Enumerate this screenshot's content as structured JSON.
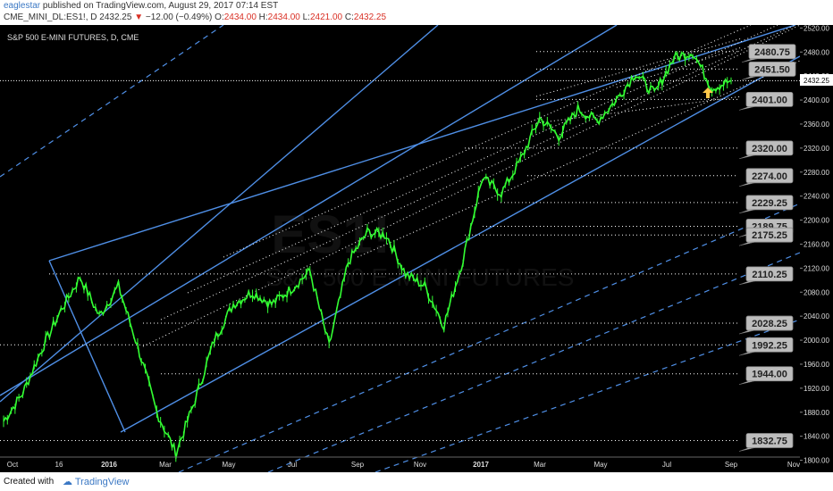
{
  "header": {
    "user": "eaglestar",
    "published": "published on TradingView.com, August 29, 2017 07:14 EST",
    "symbol": "CME_MINI_DL:ES1!, D",
    "last": "2432.25",
    "change": "−12.00 (−0.49%)",
    "o_label": "O:",
    "o_value": "2434.00",
    "h_label": "H:",
    "h_value": "2434.00",
    "l_label": "L:",
    "l_value": "2421.00",
    "c_label": "C:",
    "c_value": "2432.25"
  },
  "footer": {
    "created": "Created with",
    "brand": "TradingView"
  },
  "colors": {
    "background": "#000000",
    "candles": "#33ff33",
    "channel": "#4f8fe6",
    "dotted": "#ffffff",
    "callout_fill": "#bdbdbd",
    "arrow": "#ffc84a"
  },
  "chart_data": {
    "type": "line",
    "title": "S&P 500 E-MINI FUTURES, D, CME",
    "watermark": [
      "ES1!",
      "S&P 500 E-MINI FUTURES"
    ],
    "x_ticks": [
      "Oct",
      "16",
      "2016",
      "Mar",
      "May",
      "Jul",
      "Sep",
      "Nov",
      "2017",
      "Mar",
      "May",
      "Jul",
      "Sep",
      "Nov"
    ],
    "y_ticks": [
      "2520.00",
      "2480.00",
      "2440.00",
      "2400.00",
      "2360.00",
      "2320.00",
      "2280.00",
      "2240.00",
      "2200.00",
      "2160.00",
      "2120.00",
      "2080.00",
      "2040.00",
      "2000.00",
      "1960.00",
      "1920.00",
      "1880.00",
      "1840.00",
      "1800.00"
    ],
    "ylim": [
      1780,
      2525
    ],
    "last_price": "2432.25",
    "price_path": [
      1865,
      1912,
      1985,
      2050,
      2105,
      2040,
      2090,
      1990,
      1880,
      1812,
      1900,
      2000,
      2060,
      2080,
      2060,
      2085,
      2115,
      1990,
      2130,
      2180,
      2175,
      2110,
      2090,
      2025,
      2135,
      2270,
      2245,
      2300,
      2370,
      2340,
      2385,
      2365,
      2400,
      2445,
      2410,
      2470,
      2480,
      2420,
      2432
    ],
    "levels": [
      {
        "label": "2480.75",
        "value": 2480.75
      },
      {
        "label": "2451.50",
        "value": 2451.5
      },
      {
        "label": "2401.00",
        "value": 2401.0
      },
      {
        "label": "2320.00",
        "value": 2320.0
      },
      {
        "label": "2274.00",
        "value": 2274.0
      },
      {
        "label": "2229.25",
        "value": 2229.25
      },
      {
        "label": "2189.75",
        "value": 2189.75
      },
      {
        "label": "2175.25",
        "value": 2175.25
      },
      {
        "label": "2110.25",
        "value": 2110.25
      },
      {
        "label": "2028.25",
        "value": 2028.25
      },
      {
        "label": "1992.25",
        "value": 1992.25
      },
      {
        "label": "1944.00",
        "value": 1944.0
      },
      {
        "label": "1832.75",
        "value": 1832.75
      }
    ]
  }
}
